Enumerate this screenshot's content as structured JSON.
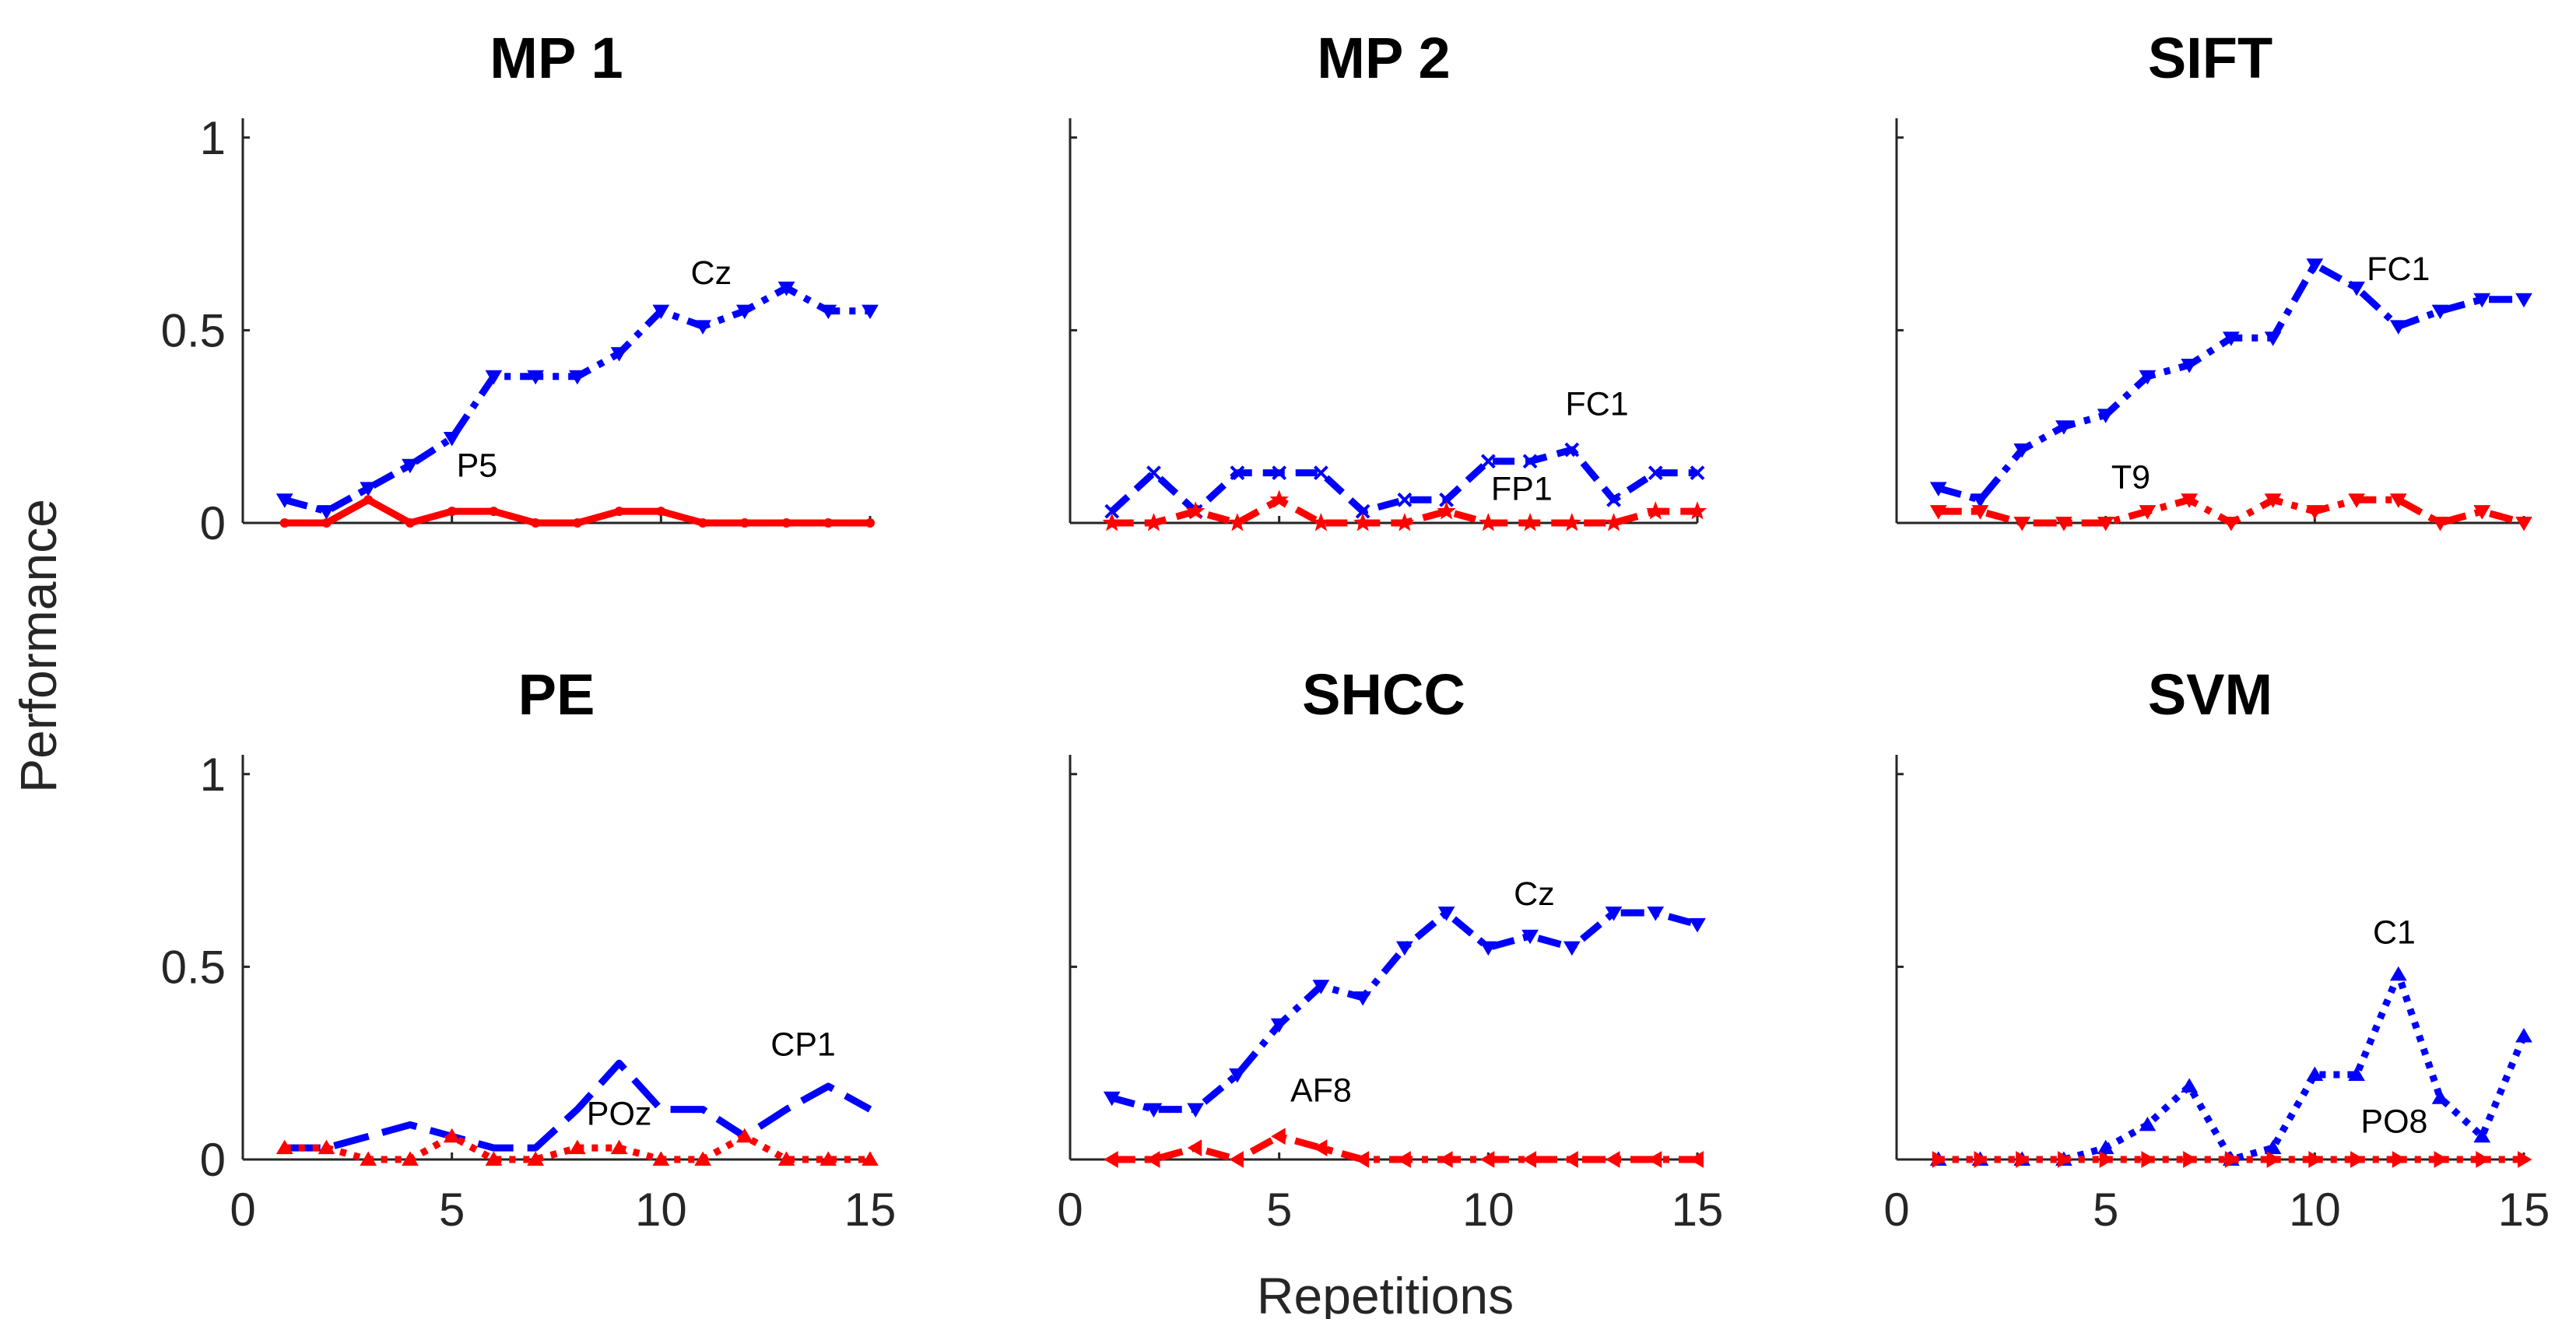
{
  "figure": {
    "ylabel": "Performance",
    "xlabel": "Repetitions",
    "xlim": [
      0,
      15
    ],
    "ylim": [
      0,
      1
    ],
    "xticks": [
      0,
      5,
      10,
      15
    ],
    "yticks": [
      0,
      0.5,
      1
    ],
    "colors": {
      "blue": "#0000ff",
      "red": "#ff0000"
    }
  },
  "chart_data": [
    {
      "type": "line",
      "title": "MP 1",
      "x": [
        1,
        2,
        3,
        4,
        5,
        6,
        7,
        8,
        9,
        10,
        11,
        12,
        13,
        14,
        15
      ],
      "series": [
        {
          "name": "Cz",
          "color": "#0000ff",
          "style": "dashdot",
          "marker": "triangle-down",
          "values": [
            0.06,
            0.03,
            0.09,
            0.15,
            0.22,
            0.38,
            0.38,
            0.38,
            0.44,
            0.55,
            0.51,
            0.55,
            0.61,
            0.55,
            0.55
          ]
        },
        {
          "name": "P5",
          "color": "#ff0000",
          "style": "solid",
          "marker": "dot",
          "values": [
            0.0,
            0.0,
            0.06,
            0.0,
            0.03,
            0.03,
            0.0,
            0.0,
            0.03,
            0.03,
            0.0,
            0.0,
            0.0,
            0.0,
            0.0
          ]
        }
      ],
      "annotations": [
        {
          "text": "Cz",
          "x": 11.2,
          "y": 0.62
        },
        {
          "text": "P5",
          "x": 5.6,
          "y": 0.12
        }
      ],
      "xticklabels": false,
      "yticklabels": true
    },
    {
      "type": "line",
      "title": "MP 2",
      "x": [
        1,
        2,
        3,
        4,
        5,
        6,
        7,
        8,
        9,
        10,
        11,
        12,
        13,
        14,
        15
      ],
      "series": [
        {
          "name": "FC1",
          "color": "#0000ff",
          "style": "dashed",
          "marker": "x",
          "values": [
            0.03,
            0.13,
            0.03,
            0.13,
            0.13,
            0.13,
            0.03,
            0.06,
            0.06,
            0.16,
            0.16,
            0.19,
            0.06,
            0.13,
            0.13
          ]
        },
        {
          "name": "FP1",
          "color": "#ff0000",
          "style": "dashed",
          "marker": "star",
          "values": [
            0.0,
            0.0,
            0.03,
            0.0,
            0.06,
            0.0,
            0.0,
            0.0,
            0.03,
            0.0,
            0.0,
            0.0,
            0.0,
            0.03,
            0.03
          ]
        }
      ],
      "annotations": [
        {
          "text": "FC1",
          "x": 12.6,
          "y": 0.28
        },
        {
          "text": "FP1",
          "x": 10.8,
          "y": 0.06
        }
      ],
      "xticklabels": false,
      "yticklabels": false
    },
    {
      "type": "line",
      "title": "SIFT",
      "x": [
        1,
        2,
        3,
        4,
        5,
        6,
        7,
        8,
        9,
        10,
        11,
        12,
        13,
        14,
        15
      ],
      "series": [
        {
          "name": "FC1",
          "color": "#0000ff",
          "style": "dashdot",
          "marker": "triangle-down",
          "values": [
            0.09,
            0.06,
            0.19,
            0.25,
            0.28,
            0.38,
            0.41,
            0.48,
            0.48,
            0.67,
            0.61,
            0.51,
            0.55,
            0.58,
            0.58
          ]
        },
        {
          "name": "T9",
          "color": "#ff0000",
          "style": "dashdot",
          "marker": "triangle-down",
          "values": [
            0.03,
            0.03,
            0.0,
            0.0,
            0.0,
            0.03,
            0.06,
            0.0,
            0.06,
            0.03,
            0.06,
            0.06,
            0.0,
            0.03,
            0.0
          ]
        }
      ],
      "annotations": [
        {
          "text": "FC1",
          "x": 12.0,
          "y": 0.63
        },
        {
          "text": "T9",
          "x": 5.6,
          "y": 0.09
        }
      ],
      "xticklabels": false,
      "yticklabels": false
    },
    {
      "type": "line",
      "title": "PE",
      "x": [
        1,
        2,
        3,
        4,
        5,
        6,
        7,
        8,
        9,
        10,
        11,
        12,
        13,
        14,
        15
      ],
      "series": [
        {
          "name": "CP1",
          "color": "#0000ff",
          "style": "longdash",
          "marker": "none",
          "values": [
            0.03,
            0.03,
            0.06,
            0.09,
            0.06,
            0.03,
            0.03,
            0.13,
            0.25,
            0.13,
            0.13,
            0.06,
            0.13,
            0.19,
            0.13
          ]
        },
        {
          "name": "POz",
          "color": "#ff0000",
          "style": "dotted",
          "marker": "triangle-up",
          "values": [
            0.03,
            0.03,
            0.0,
            0.0,
            0.06,
            0.0,
            0.0,
            0.03,
            0.03,
            0.0,
            0.0,
            0.06,
            0.0,
            0.0,
            0.0
          ]
        }
      ],
      "annotations": [
        {
          "text": "CP1",
          "x": 13.4,
          "y": 0.27
        },
        {
          "text": "POz",
          "x": 9.0,
          "y": 0.09
        }
      ],
      "xticklabels": true,
      "yticklabels": true
    },
    {
      "type": "line",
      "title": "SHCC",
      "x": [
        1,
        2,
        3,
        4,
        5,
        6,
        7,
        8,
        9,
        10,
        11,
        12,
        13,
        14,
        15
      ],
      "series": [
        {
          "name": "Cz",
          "color": "#0000ff",
          "style": "dashdot",
          "marker": "triangle-down",
          "values": [
            0.16,
            0.13,
            0.13,
            0.22,
            0.35,
            0.45,
            0.42,
            0.55,
            0.64,
            0.55,
            0.58,
            0.55,
            0.64,
            0.64,
            0.61
          ]
        },
        {
          "name": "AF8",
          "color": "#ff0000",
          "style": "dashdot",
          "marker": "triangle-left",
          "values": [
            0.0,
            0.0,
            0.03,
            0.0,
            0.06,
            0.03,
            0.0,
            0.0,
            0.0,
            0.0,
            0.0,
            0.0,
            0.0,
            0.0,
            0.0
          ]
        }
      ],
      "annotations": [
        {
          "text": "Cz",
          "x": 11.1,
          "y": 0.66
        },
        {
          "text": "AF8",
          "x": 6.0,
          "y": 0.15
        }
      ],
      "xticklabels": true,
      "yticklabels": false
    },
    {
      "type": "line",
      "title": "SVM",
      "x": [
        1,
        2,
        3,
        4,
        5,
        6,
        7,
        8,
        9,
        10,
        11,
        12,
        13,
        14,
        15
      ],
      "series": [
        {
          "name": "C1",
          "color": "#0000ff",
          "style": "dotted",
          "marker": "triangle-up",
          "values": [
            0.0,
            0.0,
            0.0,
            0.0,
            0.03,
            0.09,
            0.19,
            0.0,
            0.03,
            0.22,
            0.22,
            0.48,
            0.16,
            0.06,
            0.32
          ]
        },
        {
          "name": "PO8",
          "color": "#ff0000",
          "style": "dotted",
          "marker": "triangle-right",
          "values": [
            0.0,
            0.0,
            0.0,
            0.0,
            0.0,
            0.0,
            0.0,
            0.0,
            0.0,
            0.0,
            0.0,
            0.0,
            0.0,
            0.0,
            0.0
          ]
        }
      ],
      "annotations": [
        {
          "text": "C1",
          "x": 11.9,
          "y": 0.56
        },
        {
          "text": "PO8",
          "x": 11.9,
          "y": 0.07
        }
      ],
      "xticklabels": true,
      "yticklabels": false
    }
  ]
}
